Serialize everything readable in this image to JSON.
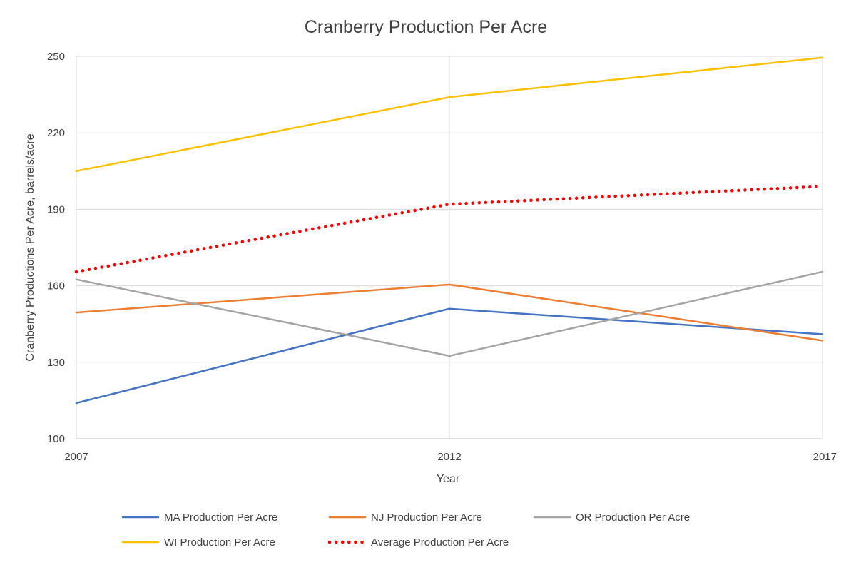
{
  "chart_data": {
    "type": "line",
    "title": "Cranberry Production Per Acre",
    "xlabel": "Year",
    "ylabel": "Cranberry Productions Per Acre, barrels/acre",
    "x": [
      2007,
      2012,
      2017
    ],
    "x_tick_labels": [
      "2007",
      "2012",
      "2017"
    ],
    "ylim": [
      100,
      250
    ],
    "y_ticks": [
      100,
      130,
      160,
      190,
      220,
      250
    ],
    "y_tick_labels": [
      "100",
      "130",
      "160",
      "190",
      "220",
      "250"
    ],
    "grid": true,
    "legend_position": "bottom",
    "series": [
      {
        "name": "MA Production Per Acre",
        "values": [
          114,
          151,
          141
        ],
        "color": "#4472C4",
        "style": "solid"
      },
      {
        "name": "NJ Production Per Acre",
        "values": [
          149.5,
          160.5,
          138.5
        ],
        "color": "#ED7D31",
        "style": "solid"
      },
      {
        "name": "OR Production Per Acre",
        "values": [
          162.5,
          132.5,
          165.5
        ],
        "color": "#A5A5A5",
        "style": "solid"
      },
      {
        "name": "WI Production Per Acre",
        "values": [
          205,
          234,
          249.5
        ],
        "color": "#FFC000",
        "style": "solid"
      },
      {
        "name": "Average Production Per Acre",
        "values": [
          165.5,
          192,
          199
        ],
        "color": "#FF0000",
        "style": "dotted"
      }
    ]
  }
}
